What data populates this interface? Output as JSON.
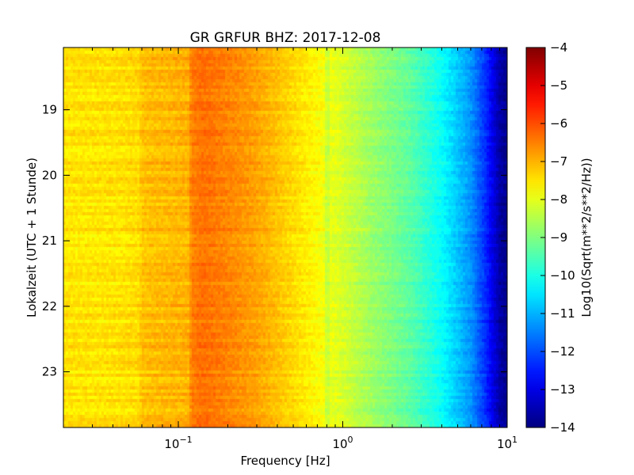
{
  "chart_data": {
    "type": "heatmap",
    "title": "GR GRFUR BHZ: 2017-12-08",
    "xlabel": "Frequency [Hz]",
    "ylabel": "Lokalzeit (UTC + 1 Stunde)",
    "x_scale": "log",
    "xlim": [
      0.02,
      10
    ],
    "x_tick_values": [
      0.1,
      1,
      10
    ],
    "x_tick_labels": [
      {
        "base": "10",
        "exp": "−1"
      },
      {
        "base": "10",
        "exp": "0"
      },
      {
        "base": "10",
        "exp": "1"
      }
    ],
    "y_scale": "linear",
    "y_direction": "downward",
    "ylim": [
      18.05,
      23.85
    ],
    "y_ticks": [
      19,
      20,
      21,
      22,
      23
    ],
    "colorbar": {
      "label": "Log10(Sqrt(m**2/s**2/Hz))",
      "range": [
        -14,
        -4
      ],
      "ticks": [
        -4,
        -5,
        -6,
        -7,
        -8,
        -9,
        -10,
        -11,
        -12,
        -13,
        -14
      ],
      "tick_labels": [
        "−4",
        "−5",
        "−6",
        "−7",
        "−8",
        "−9",
        "−10",
        "−11",
        "−12",
        "−13",
        "−14"
      ],
      "colormap": "jet"
    },
    "spectrum_profile": {
      "description_units": "log10 amplitude vs frequency (Hz)",
      "freq": [
        0.02,
        0.04,
        0.058,
        0.06,
        0.09,
        0.115,
        0.12,
        0.14,
        0.2,
        0.3,
        0.5,
        0.7,
        1.0,
        1.5,
        2.5,
        4.0,
        6.0,
        7.5,
        9.0,
        10.0
      ],
      "log10_amplitude": [
        -7.5,
        -7.5,
        -7.4,
        -7.15,
        -7.05,
        -7.0,
        -6.5,
        -6.35,
        -6.55,
        -6.85,
        -7.4,
        -7.75,
        -8.15,
        -8.7,
        -9.3,
        -10.2,
        -11.3,
        -12.4,
        -13.6,
        -13.9
      ]
    }
  }
}
